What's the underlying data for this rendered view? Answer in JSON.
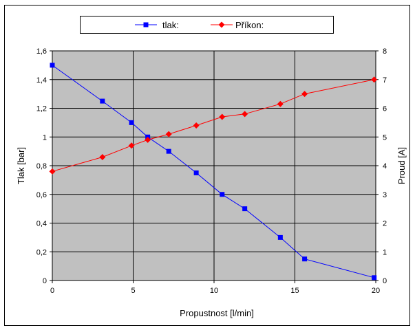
{
  "chart_data": {
    "type": "line",
    "title": "",
    "xlabel": "Propustnost [l/min]",
    "ylabel_left": "Tlak [bar]",
    "ylabel_right": "Proud [A]",
    "xlim": [
      0,
      20
    ],
    "ylim_left": [
      0,
      1.6
    ],
    "ylim_right": [
      0,
      8
    ],
    "x_ticks": [
      "0",
      "5",
      "10",
      "15",
      "20"
    ],
    "y_left_ticks": [
      "0",
      "0,2",
      "0,4",
      "0,6",
      "0,8",
      "1",
      "1,2",
      "1,4",
      "1,6"
    ],
    "y_right_ticks": [
      "0",
      "1",
      "2",
      "3",
      "4",
      "5",
      "6",
      "7",
      "8"
    ],
    "grid": true,
    "legend_position": "top",
    "series": [
      {
        "name": "tlak:",
        "axis": "left",
        "color": "#0000ff",
        "marker": "square",
        "x": [
          0,
          3.1,
          4.9,
          5.9,
          7.2,
          8.9,
          10.5,
          11.9,
          14.1,
          15.6,
          19.9
        ],
        "y": [
          1.5,
          1.25,
          1.1,
          1.0,
          0.9,
          0.75,
          0.6,
          0.5,
          0.3,
          0.15,
          0.02
        ]
      },
      {
        "name": "Příkon:",
        "axis": "right",
        "color": "#ff0000",
        "marker": "diamond",
        "x": [
          0,
          3.1,
          4.9,
          5.9,
          7.2,
          8.9,
          10.5,
          11.9,
          14.1,
          15.6,
          19.9
        ],
        "y": [
          3.8,
          4.3,
          4.7,
          4.9,
          5.1,
          5.4,
          5.7,
          5.8,
          6.15,
          6.5,
          7.0
        ]
      }
    ]
  }
}
